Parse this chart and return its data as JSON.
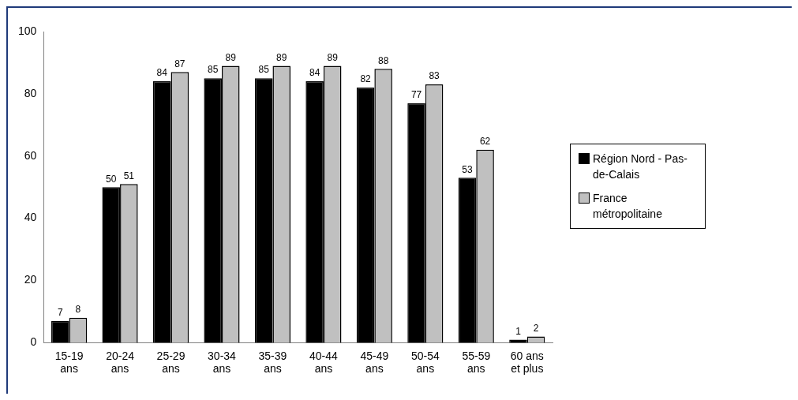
{
  "chart_data": {
    "type": "bar",
    "categories": [
      "15-19 ans",
      "20-24 ans",
      "25-29 ans",
      "30-34 ans",
      "35-39 ans",
      "40-44 ans",
      "45-49 ans",
      "50-54 ans",
      "55-59 ans",
      "60 ans et plus"
    ],
    "series": [
      {
        "name": "Région Nord - Pas-de-Calais",
        "color": "#000000",
        "values": [
          7,
          50,
          84,
          85,
          85,
          84,
          82,
          77,
          53,
          1
        ]
      },
      {
        "name": "France métropolitaine",
        "color": "#c0c0c0",
        "values": [
          8,
          51,
          87,
          89,
          89,
          89,
          88,
          83,
          62,
          2
        ]
      }
    ],
    "ylim": [
      0,
      100
    ],
    "yticks": [
      0,
      20,
      40,
      60,
      80,
      100
    ],
    "grid": false,
    "legend": "right",
    "data_labels": true
  }
}
